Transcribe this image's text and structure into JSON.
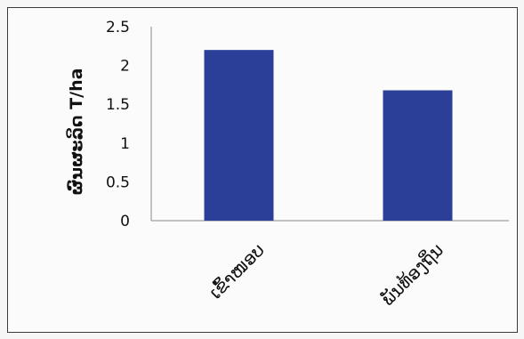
{
  "chart_data": {
    "type": "bar",
    "categories": [
      "ເຂົ້າໜອບ",
      "ພັນທ້ອງຖິ່ນ"
    ],
    "values": [
      2.2,
      1.68
    ],
    "ylabel": "ຜົນຜະລິດ T/ha",
    "xlabel": "",
    "ylim": [
      0,
      2.5
    ],
    "yticks": [
      "0",
      "0.5",
      "1",
      "1.5",
      "2",
      "2.5"
    ],
    "bar_color": "#2b3f98",
    "grid": false,
    "legend": "none"
  }
}
